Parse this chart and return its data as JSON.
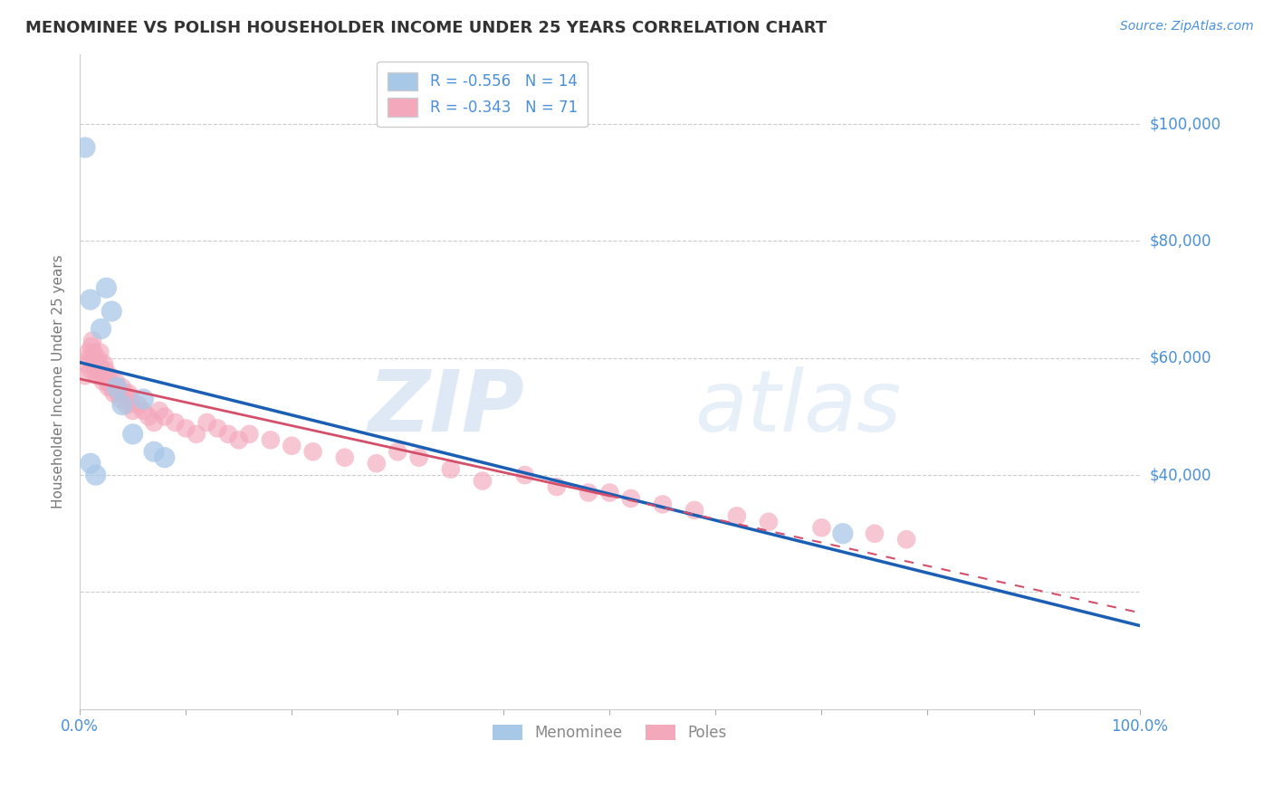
{
  "title": "MENOMINEE VS POLISH HOUSEHOLDER INCOME UNDER 25 YEARS CORRELATION CHART",
  "source": "Source: ZipAtlas.com",
  "ylabel": "Householder Income Under 25 years",
  "R_menominee": -0.556,
  "N_menominee": 14,
  "R_poles": -0.343,
  "N_poles": 71,
  "color_menominee": "#a8c8e8",
  "color_poles": "#f4a8bc",
  "color_trend_menominee": "#1a5fb4",
  "color_trend_poles": "#d4506a",
  "color_axis_labels": "#4a90d9",
  "background_color": "#ffffff",
  "ylim": [
    0,
    112000
  ],
  "xlim": [
    0,
    1.0
  ],
  "menominee_x": [
    0.005,
    0.01,
    0.02,
    0.025,
    0.03,
    0.035,
    0.04,
    0.05,
    0.06,
    0.07,
    0.08,
    0.01,
    0.015,
    0.72
  ],
  "menominee_y": [
    96000,
    70000,
    65000,
    72000,
    68000,
    55000,
    52000,
    47000,
    53000,
    44000,
    43000,
    42000,
    40000,
    30000
  ],
  "poles_x": [
    0.005,
    0.007,
    0.008,
    0.009,
    0.01,
    0.011,
    0.012,
    0.013,
    0.014,
    0.015,
    0.015,
    0.016,
    0.017,
    0.018,
    0.019,
    0.02,
    0.021,
    0.022,
    0.023,
    0.024,
    0.025,
    0.026,
    0.027,
    0.028,
    0.03,
    0.032,
    0.034,
    0.035,
    0.036,
    0.038,
    0.04,
    0.042,
    0.044,
    0.046,
    0.048,
    0.05,
    0.055,
    0.06,
    0.065,
    0.07,
    0.075,
    0.08,
    0.09,
    0.1,
    0.11,
    0.12,
    0.13,
    0.14,
    0.15,
    0.16,
    0.18,
    0.2,
    0.22,
    0.25,
    0.28,
    0.3,
    0.32,
    0.35,
    0.38,
    0.42,
    0.45,
    0.48,
    0.5,
    0.52,
    0.55,
    0.58,
    0.62,
    0.65,
    0.7,
    0.75,
    0.78
  ],
  "poles_y": [
    57000,
    59000,
    61000,
    60000,
    58000,
    62000,
    63000,
    61000,
    60000,
    59000,
    58000,
    57000,
    60000,
    59000,
    61000,
    58000,
    57000,
    56000,
    59000,
    58000,
    57000,
    56000,
    55000,
    57000,
    55000,
    54000,
    56000,
    55000,
    54000,
    53000,
    55000,
    54000,
    52000,
    54000,
    53000,
    51000,
    52000,
    51000,
    50000,
    49000,
    51000,
    50000,
    49000,
    48000,
    47000,
    49000,
    48000,
    47000,
    46000,
    47000,
    46000,
    45000,
    44000,
    43000,
    42000,
    44000,
    43000,
    41000,
    39000,
    40000,
    38000,
    37000,
    37000,
    36000,
    35000,
    34000,
    33000,
    32000,
    31000,
    30000,
    29000
  ],
  "watermark_zip": "ZIP",
  "watermark_atlas": "atlas",
  "trend_men_x0": 0.0,
  "trend_men_x1": 1.0,
  "trend_pol_solid_x0": 0.0,
  "trend_pol_solid_x1": 0.5,
  "trend_pol_dash_x0": 0.5,
  "trend_pol_dash_x1": 1.0
}
